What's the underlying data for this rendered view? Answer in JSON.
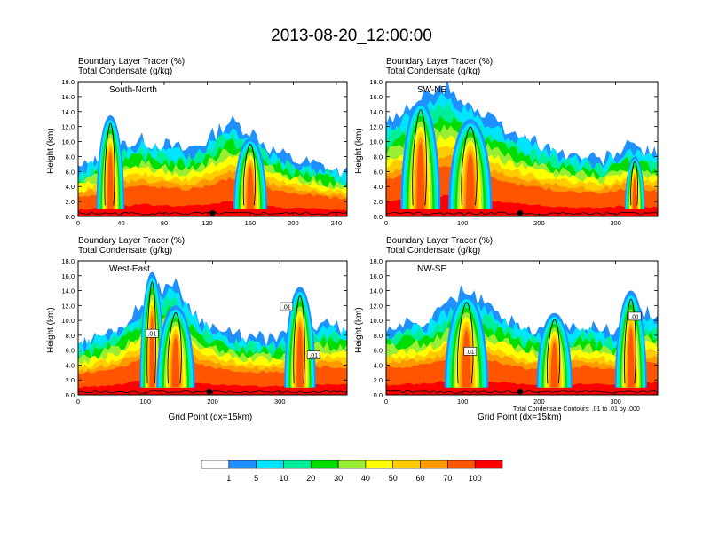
{
  "title": "2013-08-20_12:00:00",
  "colorbar": {
    "levels": [
      "1",
      "5",
      "10",
      "20",
      "30",
      "40",
      "50",
      "60",
      "70",
      "100"
    ],
    "colors": [
      "#ffffff",
      "#1e90ff",
      "#00e5ff",
      "#00ee99",
      "#00dd00",
      "#99ee33",
      "#ffff00",
      "#ffcc00",
      "#ff9900",
      "#ff5500",
      "#ff0000"
    ]
  },
  "contour_color": "#000000",
  "footnote": "Total Condensate Contours: .01 to .01 by .000",
  "chart_data": [
    {
      "type": "heatmap",
      "title_line1": "Boundary Layer Tracer   (%)",
      "title_line2": "Total Condensate   (g/kg)",
      "panel_label": "South-North",
      "ylabel": "Height (km)",
      "xlabel": "",
      "xlim": [
        0,
        250
      ],
      "ylim": [
        0,
        18
      ],
      "xticks": [
        "0",
        "40",
        "80",
        "120",
        "160",
        "200",
        "240"
      ],
      "yticks": [
        "0.0",
        "2.0",
        "4.0",
        "6.0",
        "8.0",
        "10.0",
        "12.0",
        "14.0",
        "16.0",
        "18.0"
      ],
      "profile": [
        [
          0,
          1.4
        ],
        [
          20,
          1.8
        ],
        [
          40,
          2.4
        ],
        [
          60,
          2.6
        ],
        [
          80,
          2.4
        ],
        [
          100,
          2.2
        ],
        [
          120,
          2.6
        ],
        [
          140,
          3.4
        ],
        [
          160,
          3.0
        ],
        [
          180,
          2.2
        ],
        [
          200,
          1.8
        ],
        [
          220,
          1.6
        ],
        [
          240,
          1.3
        ],
        [
          250,
          1.2
        ]
      ],
      "plumes": [
        {
          "x": 30,
          "top": 13.5,
          "w": 10
        },
        {
          "x": 160,
          "top": 10.5,
          "w": 12
        }
      ],
      "marker_x": 125
    },
    {
      "type": "heatmap",
      "title_line1": "Boundary Layer Tracer   (%)",
      "title_line2": "Total Condensate   (g/kg)",
      "panel_label": "SW-NE",
      "ylabel": "Height (km)",
      "xlabel": "",
      "xlim": [
        0,
        355
      ],
      "ylim": [
        0,
        18
      ],
      "xticks": [
        "0",
        "100",
        "200",
        "300"
      ],
      "yticks": [
        "0.0",
        "2.0",
        "4.0",
        "6.0",
        "8.0",
        "10.0",
        "12.0",
        "14.0",
        "16.0",
        "18.0"
      ],
      "profile": [
        [
          0,
          3.2
        ],
        [
          40,
          4.2
        ],
        [
          80,
          4.8
        ],
        [
          120,
          3.8
        ],
        [
          160,
          3.0
        ],
        [
          200,
          2.4
        ],
        [
          240,
          2.0
        ],
        [
          280,
          1.8
        ],
        [
          320,
          2.4
        ],
        [
          355,
          2.0
        ]
      ],
      "plumes": [
        {
          "x": 45,
          "top": 15.5,
          "w": 20
        },
        {
          "x": 110,
          "top": 13.0,
          "w": 22
        },
        {
          "x": 325,
          "top": 8.0,
          "w": 10
        }
      ],
      "marker_x": 175
    },
    {
      "type": "heatmap",
      "title_line1": "Boundary Layer Tracer   (%)",
      "title_line2": "Total Condensate   (g/kg)",
      "panel_label": "West-East",
      "ylabel": "Height (km)",
      "xlabel": "Grid Point (dx=15km)",
      "xlim": [
        0,
        400
      ],
      "ylim": [
        0,
        18
      ],
      "xticks": [
        "0",
        "100",
        "200",
        "300"
      ],
      "yticks": [
        "0.0",
        "2.0",
        "4.0",
        "6.0",
        "8.0",
        "10.0",
        "12.0",
        "14.0",
        "16.0",
        "18.0"
      ],
      "profile": [
        [
          0,
          1.5
        ],
        [
          60,
          2.2
        ],
        [
          110,
          3.6
        ],
        [
          140,
          4.2
        ],
        [
          180,
          2.6
        ],
        [
          220,
          2.0
        ],
        [
          260,
          1.8
        ],
        [
          300,
          1.8
        ],
        [
          340,
          2.4
        ],
        [
          400,
          2.2
        ]
      ],
      "plumes": [
        {
          "x": 110,
          "top": 16.5,
          "w": 14
        },
        {
          "x": 145,
          "top": 12.0,
          "w": 22
        },
        {
          "x": 330,
          "top": 14.5,
          "w": 18
        }
      ],
      "marker_x": 195,
      "contour_labels": [
        {
          "x": 110,
          "y": 8.2,
          "text": ".01"
        },
        {
          "x": 310,
          "y": 11.8,
          "text": ".01"
        },
        {
          "x": 350,
          "y": 5.3,
          "text": ".01"
        }
      ]
    },
    {
      "type": "heatmap",
      "title_line1": "Boundary Layer Tracer   (%)",
      "title_line2": "Total Condensate   (g/kg)",
      "panel_label": "NW-SE",
      "ylabel": "Height (km)",
      "xlabel": "Grid Point (dx=15km)",
      "xlim": [
        0,
        355
      ],
      "ylim": [
        0,
        18
      ],
      "xticks": [
        "0",
        "100",
        "200",
        "300"
      ],
      "yticks": [
        "0.0",
        "2.0",
        "4.0",
        "6.0",
        "8.0",
        "10.0",
        "12.0",
        "14.0",
        "16.0",
        "18.0"
      ],
      "profile": [
        [
          0,
          2.2
        ],
        [
          60,
          2.6
        ],
        [
          100,
          3.8
        ],
        [
          140,
          3.0
        ],
        [
          180,
          2.2
        ],
        [
          220,
          2.0
        ],
        [
          260,
          2.4
        ],
        [
          300,
          2.0
        ],
        [
          330,
          3.0
        ],
        [
          355,
          2.6
        ]
      ],
      "plumes": [
        {
          "x": 105,
          "top": 13.5,
          "w": 22
        },
        {
          "x": 220,
          "top": 11.0,
          "w": 18
        },
        {
          "x": 320,
          "top": 14.0,
          "w": 16
        }
      ],
      "marker_x": 175,
      "contour_labels": [
        {
          "x": 110,
          "y": 5.8,
          "text": ".01"
        },
        {
          "x": 325,
          "y": 10.5,
          "text": ".01"
        }
      ]
    }
  ]
}
